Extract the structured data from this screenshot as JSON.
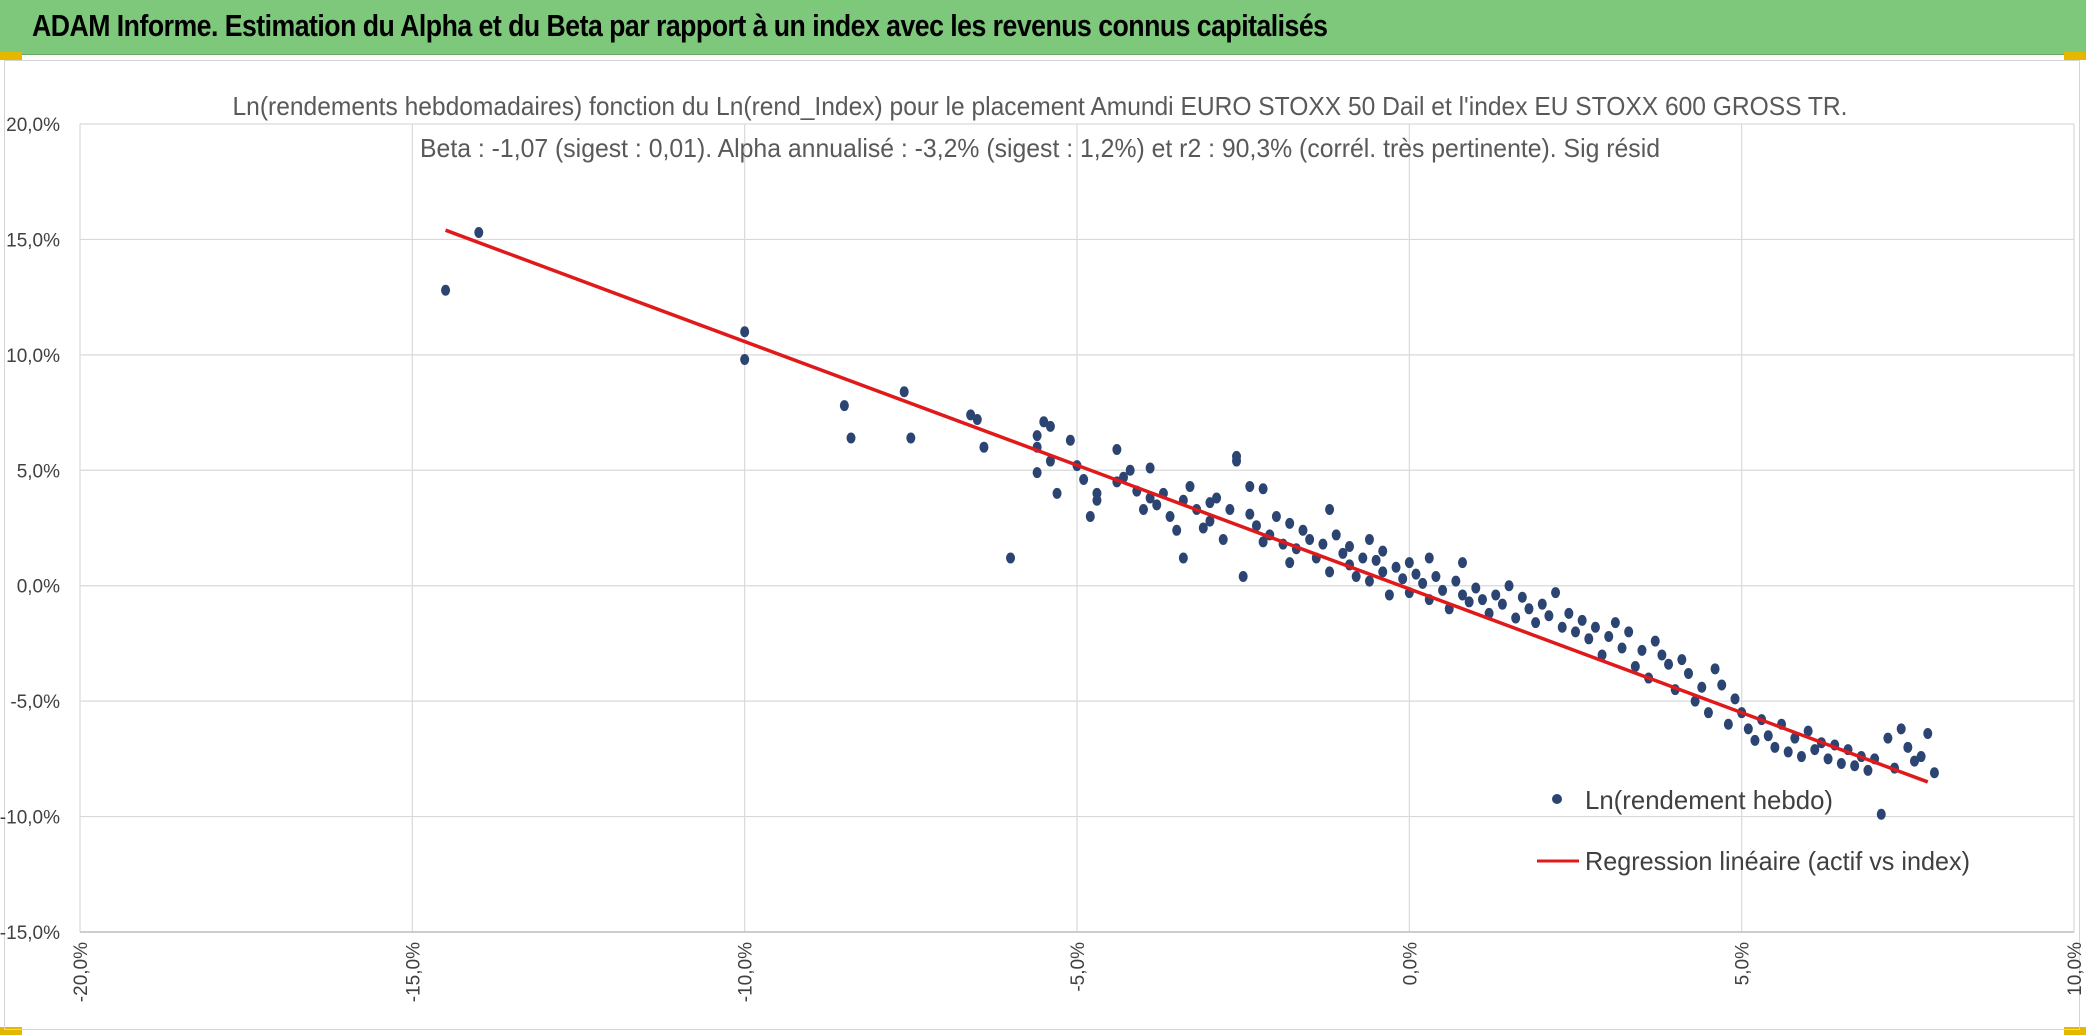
{
  "header": {
    "title": "ADAM Informe. Estimation du Alpha et du Beta par rapport à un index avec les revenus connus capitalisés"
  },
  "colors": {
    "header_bg": "#7dc87a",
    "points": "#2b4472",
    "regression": "#e0191b",
    "grid": "#d9d9d9"
  },
  "chart_data": {
    "type": "scatter",
    "title_line1": "Ln(rendements hebdomadaires) fonction du Ln(rend_Index) pour le placement Amundi EURO STOXX 50 Dail et l'index EU STOXX 600 GROSS TR.",
    "title_line2": "Beta : -1,07 (sigest : 0,01). Alpha annualisé : -3,2% (sigest : 1,2%) et r2 : 90,3% (corrél. très pertinente). Sig résid",
    "xlim": [
      -0.2,
      0.1
    ],
    "ylim": [
      -0.15,
      0.2
    ],
    "x_ticks": [
      -0.2,
      -0.15,
      -0.1,
      -0.05,
      0.0,
      0.05,
      0.1
    ],
    "x_tick_labels": [
      "-20,0%",
      "-15,0%",
      "-10,0%",
      "-5,0%",
      "0,0%",
      "5,0%",
      "10,0%"
    ],
    "y_ticks": [
      0.2,
      0.15,
      0.1,
      0.05,
      0.0,
      -0.05,
      -0.1,
      -0.15
    ],
    "y_tick_labels": [
      "20,0%",
      "15,0%",
      "10,0%",
      "5,0%",
      "0,0%",
      "-5,0%",
      "-10,0%",
      "-15,0%"
    ],
    "grid": true,
    "legend_position": "bottom-right",
    "series": [
      {
        "name": "Ln(rendement hebdo)",
        "kind": "scatter",
        "points": [
          [
            -0.14,
            0.153
          ],
          [
            -0.145,
            0.128
          ],
          [
            -0.1,
            0.11
          ],
          [
            -0.1,
            0.098
          ],
          [
            -0.085,
            0.078
          ],
          [
            -0.084,
            0.064
          ],
          [
            -0.076,
            0.084
          ],
          [
            -0.075,
            0.064
          ],
          [
            -0.066,
            0.074
          ],
          [
            -0.065,
            0.072
          ],
          [
            -0.064,
            0.06
          ],
          [
            -0.06,
            0.012
          ],
          [
            -0.056,
            0.065
          ],
          [
            -0.056,
            0.06
          ],
          [
            -0.056,
            0.049
          ],
          [
            -0.055,
            0.071
          ],
          [
            -0.054,
            0.069
          ],
          [
            -0.054,
            0.054
          ],
          [
            -0.053,
            0.04
          ],
          [
            -0.051,
            0.063
          ],
          [
            -0.05,
            0.052
          ],
          [
            -0.049,
            0.046
          ],
          [
            -0.048,
            0.03
          ],
          [
            -0.047,
            0.04
          ],
          [
            -0.047,
            0.037
          ],
          [
            -0.044,
            0.059
          ],
          [
            -0.044,
            0.045
          ],
          [
            -0.043,
            0.047
          ],
          [
            -0.042,
            0.05
          ],
          [
            -0.041,
            0.041
          ],
          [
            -0.04,
            0.033
          ],
          [
            -0.039,
            0.051
          ],
          [
            -0.039,
            0.038
          ],
          [
            -0.038,
            0.035
          ],
          [
            -0.037,
            0.04
          ],
          [
            -0.036,
            0.03
          ],
          [
            -0.035,
            0.024
          ],
          [
            -0.034,
            0.037
          ],
          [
            -0.034,
            0.012
          ],
          [
            -0.033,
            0.043
          ],
          [
            -0.032,
            0.033
          ],
          [
            -0.031,
            0.025
          ],
          [
            -0.03,
            0.036
          ],
          [
            -0.03,
            0.028
          ],
          [
            -0.029,
            0.038
          ],
          [
            -0.028,
            0.02
          ],
          [
            -0.027,
            0.033
          ],
          [
            -0.026,
            0.056
          ],
          [
            -0.026,
            0.054
          ],
          [
            -0.025,
            0.004
          ],
          [
            -0.024,
            0.031
          ],
          [
            -0.024,
            0.043
          ],
          [
            -0.023,
            0.026
          ],
          [
            -0.022,
            0.042
          ],
          [
            -0.022,
            0.019
          ],
          [
            -0.021,
            0.022
          ],
          [
            -0.02,
            0.03
          ],
          [
            -0.019,
            0.018
          ],
          [
            -0.018,
            0.027
          ],
          [
            -0.018,
            0.01
          ],
          [
            -0.017,
            0.016
          ],
          [
            -0.016,
            0.024
          ],
          [
            -0.015,
            0.02
          ],
          [
            -0.014,
            0.012
          ],
          [
            -0.013,
            0.018
          ],
          [
            -0.012,
            0.033
          ],
          [
            -0.012,
            0.006
          ],
          [
            -0.011,
            0.022
          ],
          [
            -0.01,
            0.014
          ],
          [
            -0.009,
            0.009
          ],
          [
            -0.009,
            0.017
          ],
          [
            -0.008,
            0.004
          ],
          [
            -0.007,
            0.012
          ],
          [
            -0.006,
            0.02
          ],
          [
            -0.006,
            0.002
          ],
          [
            -0.005,
            0.011
          ],
          [
            -0.004,
            0.006
          ],
          [
            -0.004,
            0.015
          ],
          [
            -0.003,
            -0.004
          ],
          [
            -0.002,
            0.008
          ],
          [
            -0.001,
            0.003
          ],
          [
            0.0,
            0.01
          ],
          [
            0.0,
            -0.003
          ],
          [
            0.001,
            0.005
          ],
          [
            0.002,
            0.001
          ],
          [
            0.003,
            0.012
          ],
          [
            0.003,
            -0.006
          ],
          [
            0.004,
            0.004
          ],
          [
            0.005,
            -0.002
          ],
          [
            0.006,
            -0.01
          ],
          [
            0.007,
            0.002
          ],
          [
            0.008,
            -0.004
          ],
          [
            0.008,
            0.01
          ],
          [
            0.009,
            -0.007
          ],
          [
            0.01,
            -0.001
          ],
          [
            0.011,
            -0.006
          ],
          [
            0.012,
            -0.012
          ],
          [
            0.013,
            -0.004
          ],
          [
            0.014,
            -0.008
          ],
          [
            0.015,
            0.0
          ],
          [
            0.016,
            -0.014
          ],
          [
            0.017,
            -0.005
          ],
          [
            0.018,
            -0.01
          ],
          [
            0.019,
            -0.016
          ],
          [
            0.02,
            -0.008
          ],
          [
            0.021,
            -0.013
          ],
          [
            0.022,
            -0.003
          ],
          [
            0.023,
            -0.018
          ],
          [
            0.024,
            -0.012
          ],
          [
            0.025,
            -0.02
          ],
          [
            0.026,
            -0.015
          ],
          [
            0.027,
            -0.023
          ],
          [
            0.028,
            -0.018
          ],
          [
            0.029,
            -0.03
          ],
          [
            0.03,
            -0.022
          ],
          [
            0.031,
            -0.016
          ],
          [
            0.032,
            -0.027
          ],
          [
            0.033,
            -0.02
          ],
          [
            0.034,
            -0.035
          ],
          [
            0.035,
            -0.028
          ],
          [
            0.036,
            -0.04
          ],
          [
            0.037,
            -0.024
          ],
          [
            0.038,
            -0.03
          ],
          [
            0.039,
            -0.034
          ],
          [
            0.04,
            -0.045
          ],
          [
            0.041,
            -0.032
          ],
          [
            0.042,
            -0.038
          ],
          [
            0.043,
            -0.05
          ],
          [
            0.044,
            -0.044
          ],
          [
            0.045,
            -0.055
          ],
          [
            0.046,
            -0.036
          ],
          [
            0.047,
            -0.043
          ],
          [
            0.048,
            -0.06
          ],
          [
            0.049,
            -0.049
          ],
          [
            0.05,
            -0.055
          ],
          [
            0.051,
            -0.062
          ],
          [
            0.052,
            -0.067
          ],
          [
            0.053,
            -0.058
          ],
          [
            0.054,
            -0.065
          ],
          [
            0.055,
            -0.07
          ],
          [
            0.056,
            -0.06
          ],
          [
            0.057,
            -0.072
          ],
          [
            0.058,
            -0.066
          ],
          [
            0.059,
            -0.074
          ],
          [
            0.06,
            -0.063
          ],
          [
            0.061,
            -0.071
          ],
          [
            0.062,
            -0.068
          ],
          [
            0.063,
            -0.075
          ],
          [
            0.064,
            -0.069
          ],
          [
            0.065,
            -0.077
          ],
          [
            0.066,
            -0.071
          ],
          [
            0.067,
            -0.078
          ],
          [
            0.068,
            -0.074
          ],
          [
            0.069,
            -0.08
          ],
          [
            0.07,
            -0.075
          ],
          [
            0.071,
            -0.099
          ],
          [
            0.072,
            -0.066
          ],
          [
            0.073,
            -0.079
          ],
          [
            0.074,
            -0.062
          ],
          [
            0.075,
            -0.07
          ],
          [
            0.076,
            -0.076
          ],
          [
            0.077,
            -0.074
          ],
          [
            0.078,
            -0.064
          ],
          [
            0.079,
            -0.081
          ]
        ]
      },
      {
        "name": "Regression linéaire (actif vs index)",
        "kind": "line",
        "points": [
          [
            -0.145,
            0.154
          ],
          [
            0.078,
            -0.085
          ]
        ]
      }
    ]
  }
}
